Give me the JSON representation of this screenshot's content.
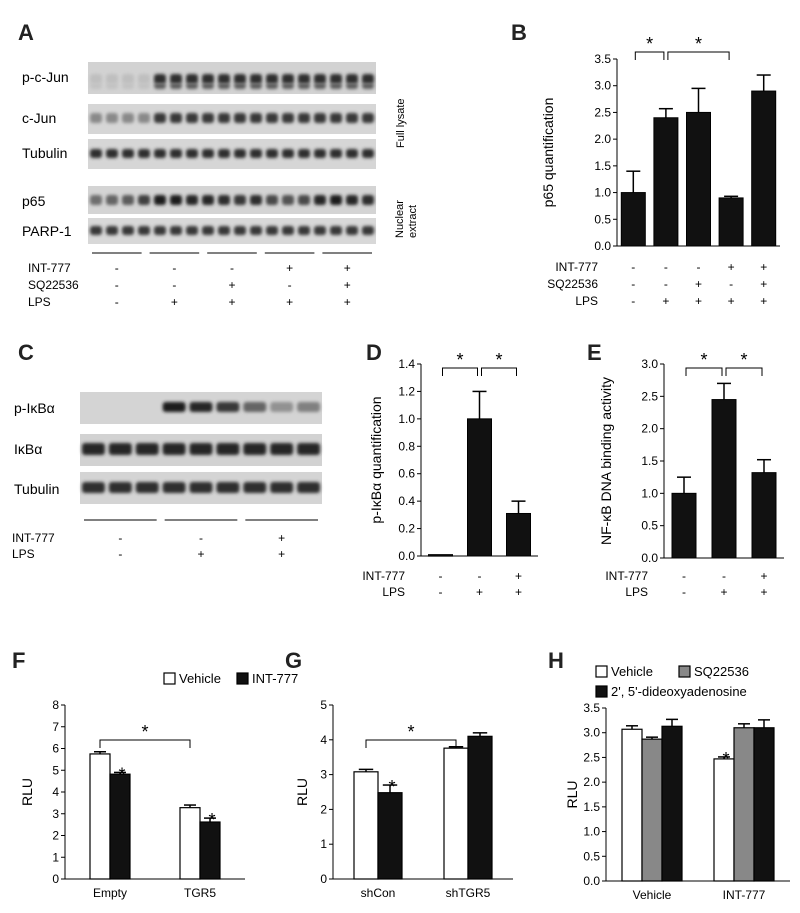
{
  "panels": {
    "A": {
      "letter": "A",
      "blot_labels": [
        "p-c-Jun",
        "c-Jun",
        "Tubulin",
        "p65",
        "PARP-1"
      ],
      "side_labels": [
        "Full lysate",
        "Nuclear extract"
      ],
      "conditions": [
        {
          "name": "INT-777",
          "signs": [
            "-",
            "-",
            "-",
            "+",
            "+"
          ]
        },
        {
          "name": "SQ22536",
          "signs": [
            "-",
            "-",
            "+",
            "-",
            "+"
          ]
        },
        {
          "name": "LPS",
          "signs": [
            "-",
            "+",
            "+",
            "+",
            "+"
          ]
        }
      ]
    },
    "C": {
      "letter": "C",
      "blot_labels": [
        "p-IκBα",
        "IκBα",
        "Tubulin"
      ],
      "conditions": [
        {
          "name": "INT-777",
          "signs": [
            "-",
            "-",
            "+"
          ]
        },
        {
          "name": "LPS",
          "signs": [
            "-",
            "+",
            "+"
          ]
        }
      ]
    }
  },
  "chart_data": [
    {
      "panel": "B",
      "type": "bar",
      "ylabel": "p65 quantification",
      "ylim": [
        0,
        3.5
      ],
      "yticks": [
        "0.0",
        "0.5",
        "1.0",
        "1.5",
        "2.0",
        "2.5",
        "3.0",
        "3.5"
      ],
      "values": [
        1.0,
        2.4,
        2.5,
        0.9,
        2.9
      ],
      "errors": [
        0.4,
        0.17,
        0.45,
        0.03,
        0.3
      ],
      "colors": [
        "#111111",
        "#111111",
        "#111111",
        "#111111",
        "#111111"
      ],
      "conditions": [
        {
          "name": "INT-777",
          "signs": [
            "-",
            "-",
            "-",
            "+",
            "+"
          ]
        },
        {
          "name": "SQ22536",
          "signs": [
            "-",
            "-",
            "+",
            "-",
            "+"
          ]
        },
        {
          "name": "LPS",
          "signs": [
            "-",
            "+",
            "+",
            "+",
            "+"
          ]
        }
      ],
      "significance": [
        {
          "from": 0,
          "to": 1,
          "label": "*"
        },
        {
          "from": 1,
          "to": 3,
          "label": "*"
        }
      ]
    },
    {
      "panel": "D",
      "type": "bar",
      "ylabel": "p-IκBα quantification",
      "ylim": [
        0,
        1.4
      ],
      "yticks": [
        "0.0",
        "0.2",
        "0.4",
        "0.6",
        "0.8",
        "1.0",
        "1.2",
        "1.4"
      ],
      "values": [
        0.01,
        1.0,
        0.31
      ],
      "errors": [
        0,
        0.2,
        0.09
      ],
      "colors": [
        "#111111",
        "#111111",
        "#111111"
      ],
      "conditions": [
        {
          "name": "INT-777",
          "signs": [
            "-",
            "-",
            "+"
          ]
        },
        {
          "name": "LPS",
          "signs": [
            "-",
            "+",
            "+"
          ]
        }
      ],
      "significance": [
        {
          "from": 0,
          "to": 1,
          "label": "*"
        },
        {
          "from": 1,
          "to": 2,
          "label": "*"
        }
      ]
    },
    {
      "panel": "E",
      "type": "bar",
      "ylabel": "NF-κB DNA binding activity",
      "ylim": [
        0,
        3.0
      ],
      "yticks": [
        "0.0",
        "0.5",
        "1.0",
        "1.5",
        "2.0",
        "2.5",
        "3.0"
      ],
      "values": [
        1.0,
        2.45,
        1.32
      ],
      "errors": [
        0.25,
        0.25,
        0.2
      ],
      "colors": [
        "#111111",
        "#111111",
        "#111111"
      ],
      "conditions": [
        {
          "name": "INT-777",
          "signs": [
            "-",
            "-",
            "+"
          ]
        },
        {
          "name": "LPS",
          "signs": [
            "-",
            "+",
            "+"
          ]
        }
      ],
      "significance": [
        {
          "from": 0,
          "to": 1,
          "label": "*"
        },
        {
          "from": 1,
          "to": 2,
          "label": "*"
        }
      ]
    },
    {
      "panel": "F",
      "type": "bar",
      "ylabel": "RLU",
      "ylim": [
        0,
        8
      ],
      "yticks": [
        "0",
        "1",
        "2",
        "3",
        "4",
        "5",
        "6",
        "7",
        "8"
      ],
      "categories": [
        "Empty",
        "TGR5"
      ],
      "series": [
        {
          "name": "Vehicle",
          "color": "#ffffff",
          "values": [
            5.75,
            3.28
          ],
          "errors": [
            0.1,
            0.12
          ]
        },
        {
          "name": "INT-777",
          "color": "#111111",
          "values": [
            4.82,
            2.62
          ],
          "errors": [
            0.08,
            0.18
          ]
        }
      ],
      "bar_stars": [
        {
          "category": 0,
          "series": 1,
          "label": "*"
        },
        {
          "category": 1,
          "series": 1,
          "label": "*"
        }
      ],
      "significance": [
        {
          "from": [
            0,
            0
          ],
          "to": [
            1,
            0
          ],
          "label": "*"
        }
      ]
    },
    {
      "panel": "G",
      "type": "bar",
      "ylabel": "RLU",
      "ylim": [
        0,
        5
      ],
      "yticks": [
        "0",
        "1",
        "2",
        "3",
        "4",
        "5"
      ],
      "categories": [
        "shCon",
        "shTGR5"
      ],
      "series": [
        {
          "name": "Vehicle",
          "color": "#ffffff",
          "values": [
            3.08,
            3.76
          ],
          "errors": [
            0.07,
            0.04
          ]
        },
        {
          "name": "INT-777",
          "color": "#111111",
          "values": [
            2.48,
            4.1
          ],
          "errors": [
            0.22,
            0.1
          ]
        }
      ],
      "bar_stars": [
        {
          "category": 0,
          "series": 1,
          "label": "*"
        }
      ],
      "significance": [
        {
          "from": [
            0,
            0
          ],
          "to": [
            1,
            0
          ],
          "label": "*"
        }
      ]
    },
    {
      "panel": "H",
      "type": "bar",
      "ylabel": "RLU",
      "ylim": [
        0,
        3.5
      ],
      "yticks": [
        "0.0",
        "0.5",
        "1.0",
        "1.5",
        "2.0",
        "2.5",
        "3.0",
        "3.5"
      ],
      "categories": [
        "Vehicle",
        "INT-777"
      ],
      "series": [
        {
          "name": "Vehicle",
          "color": "#ffffff",
          "values": [
            3.07,
            2.47
          ],
          "errors": [
            0.07,
            0.04
          ]
        },
        {
          "name": "SQ22536",
          "color": "#888888",
          "values": [
            2.87,
            3.1
          ],
          "errors": [
            0.04,
            0.08
          ]
        },
        {
          "name": "2', 5'-dideoxyadenosine",
          "color": "#111111",
          "values": [
            3.13,
            3.1
          ],
          "errors": [
            0.14,
            0.16
          ]
        }
      ],
      "bar_stars": [
        {
          "category": 1,
          "series": 0,
          "label": "*"
        }
      ],
      "significance": []
    }
  ]
}
